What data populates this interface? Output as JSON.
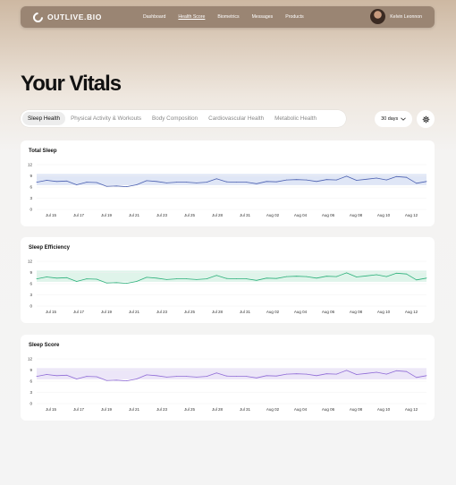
{
  "brand": {
    "name": "OUTLIVE.BIO"
  },
  "nav": {
    "links": [
      {
        "label": "Dashboard",
        "active": false
      },
      {
        "label": "Health Score",
        "active": true
      },
      {
        "label": "Biometrics",
        "active": false
      },
      {
        "label": "Messages",
        "active": false
      },
      {
        "label": "Products",
        "active": false
      }
    ],
    "user_name": "Kelvin Leonnon"
  },
  "page": {
    "title": "Your Vitals"
  },
  "tabs": [
    {
      "label": "Sleep Health",
      "active": true
    },
    {
      "label": "Physical Activity & Workouts",
      "active": false
    },
    {
      "label": "Body Composition",
      "active": false
    },
    {
      "label": "Cardiovascular Health",
      "active": false
    },
    {
      "label": "Metabolic Health",
      "active": false
    }
  ],
  "range": {
    "label": "30 days"
  },
  "icons": {
    "settings": "gear-icon",
    "range": "chevron-down-icon",
    "logo": "ring-logo-icon"
  },
  "chart_data": [
    {
      "type": "line",
      "title": "Total Sleep",
      "color": "#4a5fb0",
      "band_color": "#dfe6f6",
      "band": [
        6.5,
        9.5
      ],
      "ylim": [
        0,
        12
      ],
      "yticks": [
        0,
        3,
        6,
        9,
        12
      ],
      "x_labels": [
        "Jul 15",
        "Jul 17",
        "Jul 19",
        "Jul 21",
        "Jul 23",
        "Jul 25",
        "Jul 28",
        "Jul 31",
        "Aug 02",
        "Aug 04",
        "Aug 06",
        "Aug 08",
        "Aug 10",
        "Aug 12"
      ],
      "values": [
        7.3,
        7.8,
        7.5,
        7.6,
        6.6,
        7.3,
        7.2,
        6.2,
        6.3,
        6.1,
        6.6,
        7.7,
        7.5,
        7.1,
        7.3,
        7.3,
        7.1,
        7.3,
        8.2,
        7.4,
        7.3,
        7.3,
        6.9,
        7.5,
        7.4,
        7.9,
        8.0,
        7.9,
        7.5,
        8.0,
        7.9,
        8.9,
        7.8,
        8.1,
        8.4,
        7.9,
        8.8,
        8.6,
        7.0,
        7.5
      ]
    },
    {
      "type": "line",
      "title": "Sleep Efficiency",
      "color": "#2bb07a",
      "band_color": "#dff4ea",
      "band": [
        6.5,
        9.5
      ],
      "ylim": [
        0,
        12
      ],
      "yticks": [
        0,
        3,
        6,
        9,
        12
      ],
      "x_labels": [
        "Jul 15",
        "Jul 17",
        "Jul 19",
        "Jul 21",
        "Jul 23",
        "Jul 25",
        "Jul 28",
        "Jul 31",
        "Aug 02",
        "Aug 04",
        "Aug 06",
        "Aug 08",
        "Aug 10",
        "Aug 12"
      ],
      "values": [
        7.3,
        7.8,
        7.5,
        7.6,
        6.6,
        7.3,
        7.2,
        6.2,
        6.3,
        6.1,
        6.6,
        7.7,
        7.5,
        7.1,
        7.3,
        7.3,
        7.1,
        7.3,
        8.2,
        7.4,
        7.3,
        7.3,
        6.9,
        7.5,
        7.4,
        7.9,
        8.0,
        7.9,
        7.5,
        8.0,
        7.9,
        8.9,
        7.8,
        8.1,
        8.4,
        7.9,
        8.8,
        8.6,
        7.0,
        7.5
      ]
    },
    {
      "type": "line",
      "title": "Sleep Score",
      "color": "#8f6bd6",
      "band_color": "#ece6f8",
      "band": [
        6.5,
        9.5
      ],
      "ylim": [
        0,
        12
      ],
      "yticks": [
        0,
        3,
        6,
        9,
        12
      ],
      "x_labels": [
        "Jul 15",
        "Jul 17",
        "Jul 19",
        "Jul 21",
        "Jul 23",
        "Jul 25",
        "Jul 28",
        "Jul 31",
        "Aug 02",
        "Aug 04",
        "Aug 06",
        "Aug 08",
        "Aug 10",
        "Aug 12"
      ],
      "values": [
        7.3,
        7.8,
        7.5,
        7.6,
        6.6,
        7.3,
        7.2,
        6.2,
        6.3,
        6.1,
        6.6,
        7.7,
        7.5,
        7.1,
        7.3,
        7.3,
        7.1,
        7.3,
        8.2,
        7.4,
        7.3,
        7.3,
        6.9,
        7.5,
        7.4,
        7.9,
        8.0,
        7.9,
        7.5,
        8.0,
        7.9,
        8.9,
        7.8,
        8.1,
        8.4,
        7.9,
        8.8,
        8.6,
        7.0,
        7.5
      ]
    }
  ]
}
